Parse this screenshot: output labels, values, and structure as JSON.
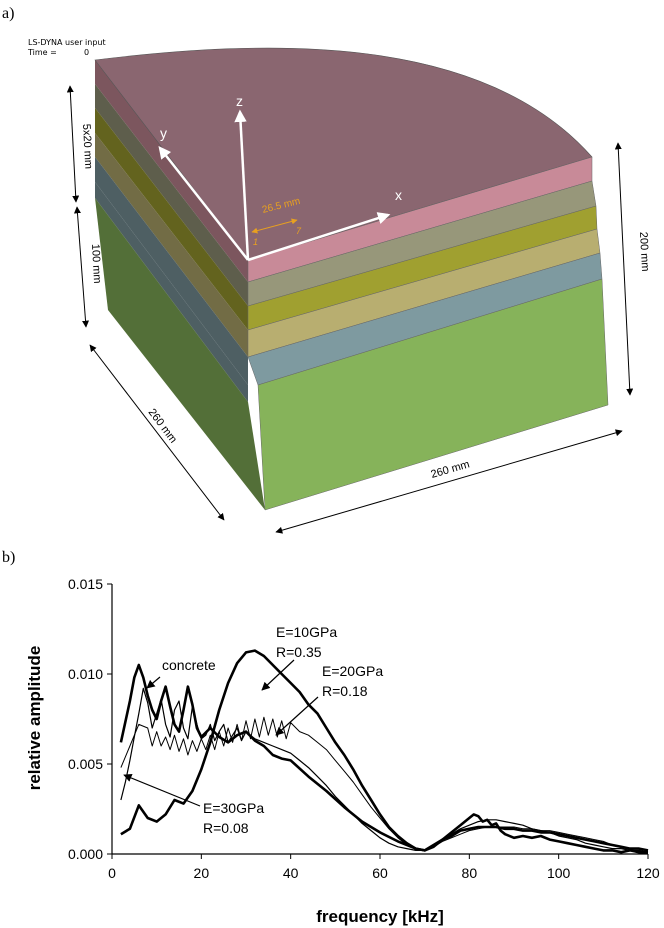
{
  "panel_a": {
    "label": "a)",
    "header_line1": "LS-DYNA user input",
    "header_line2_label": "Time =",
    "header_line2_value": "0",
    "dim_layers": "5x20 mm",
    "dim_base": "100 mm",
    "dim_height": "200 mm",
    "dim_depth": "260 mm",
    "dim_width": "260 mm",
    "axis_x": "x",
    "axis_y": "y",
    "axis_z": "z",
    "radius_label": "26.5 mm",
    "node1": "1",
    "node7": "7",
    "colors": {
      "top": "#8a6670",
      "layer1": "#c88a98",
      "layer2": "#97977a",
      "layer3": "#a0a030",
      "layer4": "#b8ae70",
      "layer5": "#7e9aa0",
      "base": "#86b35a",
      "radius_annot": "#e8a020"
    }
  },
  "panel_b": {
    "label": "b)"
  },
  "chart_data": {
    "type": "line",
    "xlabel": "frequency [kHz]",
    "ylabel": "relative amplitude",
    "xlim": [
      0,
      120
    ],
    "ylim": [
      0,
      0.015
    ],
    "xticks": [
      "0",
      "20",
      "40",
      "60",
      "80",
      "100",
      "120"
    ],
    "yticks": [
      "0.000",
      "0.005",
      "0.010",
      "0.015"
    ],
    "annotations": [
      {
        "text": "concrete",
        "lines": [
          "concrete"
        ]
      },
      {
        "text": "E=10GPa R=0.35",
        "lines": [
          "E=10GPa",
          "R=0.35"
        ]
      },
      {
        "text": "E=20GPa R=0.18",
        "lines": [
          "E=20GPa",
          "R=0.18"
        ]
      },
      {
        "text": "E=30GPa R=0.08",
        "lines": [
          "E=30GPa",
          "R=0.08"
        ]
      }
    ],
    "series": [
      {
        "name": "concrete",
        "x": [
          2,
          4,
          5,
          6,
          7,
          8,
          9,
          10,
          11,
          12,
          13,
          14,
          15,
          16,
          17,
          18,
          19,
          20,
          22,
          24,
          26,
          28,
          30,
          32,
          34,
          36,
          38,
          40,
          44,
          48,
          52,
          56,
          60,
          64,
          68,
          70,
          72,
          74,
          76,
          78,
          80,
          81,
          82,
          83,
          84,
          85,
          86,
          87,
          88,
          90,
          92,
          94,
          96,
          98,
          100,
          102,
          104,
          106,
          108,
          110,
          112,
          114,
          116,
          118,
          120
        ],
        "y": [
          0.0062,
          0.0085,
          0.0098,
          0.0105,
          0.0098,
          0.0088,
          0.008,
          0.0075,
          0.0085,
          0.0093,
          0.0082,
          0.0072,
          0.0068,
          0.008,
          0.0093,
          0.0083,
          0.007,
          0.0065,
          0.007,
          0.0065,
          0.0062,
          0.0066,
          0.0068,
          0.0063,
          0.006,
          0.0055,
          0.0053,
          0.0052,
          0.0043,
          0.0035,
          0.0026,
          0.0018,
          0.0012,
          0.0007,
          0.0003,
          0.0002,
          0.0004,
          0.0008,
          0.0012,
          0.0016,
          0.002,
          0.0022,
          0.0021,
          0.0018,
          0.0019,
          0.0016,
          0.0017,
          0.0013,
          0.0011,
          0.0009,
          0.001,
          0.0009,
          0.001,
          0.0008,
          0.0007,
          0.0006,
          0.0005,
          0.0004,
          0.0003,
          0.0002,
          0.0002,
          0.0001,
          0.0002,
          0.0001,
          0.0001
        ]
      },
      {
        "name": "E=10GPa R=0.35",
        "x": [
          2,
          4,
          6,
          8,
          10,
          12,
          14,
          16,
          18,
          20,
          22,
          24,
          26,
          28,
          30,
          32,
          34,
          36,
          38,
          40,
          42,
          44,
          46,
          48,
          50,
          52,
          54,
          56,
          58,
          60,
          62,
          64,
          66,
          68,
          70,
          72,
          74,
          76,
          78,
          80,
          82,
          84,
          86,
          88,
          90,
          92,
          94,
          96,
          98,
          100,
          102,
          104,
          106,
          108,
          110,
          112,
          114,
          116,
          118,
          120
        ],
        "y": [
          0.0011,
          0.0014,
          0.0027,
          0.002,
          0.0018,
          0.0022,
          0.003,
          0.0028,
          0.0035,
          0.0047,
          0.0062,
          0.008,
          0.0095,
          0.0106,
          0.0112,
          0.0113,
          0.011,
          0.0105,
          0.01,
          0.0095,
          0.009,
          0.0083,
          0.0078,
          0.007,
          0.0062,
          0.0055,
          0.0047,
          0.0038,
          0.003,
          0.0022,
          0.0015,
          0.001,
          0.0006,
          0.0003,
          0.0002,
          0.0005,
          0.0008,
          0.001,
          0.0013,
          0.0014,
          0.0015,
          0.0015,
          0.0015,
          0.0014,
          0.0014,
          0.0013,
          0.0013,
          0.0012,
          0.0012,
          0.0011,
          0.001,
          0.0009,
          0.0008,
          0.0007,
          0.0006,
          0.0005,
          0.0004,
          0.0003,
          0.0003,
          0.0002
        ]
      },
      {
        "name": "E=20GPa R=0.18",
        "x": [
          2,
          4,
          6,
          8,
          9,
          10,
          11,
          12,
          13,
          14,
          15,
          16,
          17,
          18,
          19,
          20,
          21,
          22,
          23,
          24,
          25,
          26,
          27,
          28,
          29,
          30,
          31,
          32,
          33,
          34,
          35,
          36,
          37,
          38,
          39,
          40,
          42,
          44,
          46,
          48,
          50,
          52,
          54,
          56,
          58,
          60,
          62,
          64,
          66,
          68,
          70,
          72,
          74,
          76,
          78,
          80,
          82,
          84,
          86,
          88,
          90,
          92,
          94,
          96,
          98,
          100,
          102,
          104,
          106,
          108,
          110,
          112,
          114,
          116,
          118,
          120
        ],
        "y": [
          0.0048,
          0.006,
          0.0072,
          0.007,
          0.006,
          0.0068,
          0.006,
          0.0065,
          0.0058,
          0.0066,
          0.0057,
          0.0064,
          0.0055,
          0.0063,
          0.0057,
          0.0064,
          0.0058,
          0.0066,
          0.0058,
          0.0068,
          0.006,
          0.007,
          0.0062,
          0.0072,
          0.0063,
          0.0074,
          0.0064,
          0.0075,
          0.0065,
          0.0076,
          0.0066,
          0.0075,
          0.0065,
          0.0074,
          0.0064,
          0.0073,
          0.0068,
          0.0066,
          0.0062,
          0.0058,
          0.0052,
          0.0046,
          0.004,
          0.0033,
          0.0026,
          0.002,
          0.0014,
          0.0009,
          0.0005,
          0.0003,
          0.0002,
          0.0004,
          0.0007,
          0.0009,
          0.0011,
          0.0013,
          0.0014,
          0.0015,
          0.0015,
          0.0015,
          0.0015,
          0.0014,
          0.0014,
          0.0013,
          0.0013,
          0.0012,
          0.0011,
          0.001,
          0.0009,
          0.0008,
          0.0007,
          0.0005,
          0.0004,
          0.0003,
          0.0003,
          0.0002
        ]
      },
      {
        "name": "E=30GPa R=0.08",
        "x": [
          2,
          3,
          4,
          5,
          6,
          7,
          8,
          9,
          10,
          11,
          12,
          13,
          14,
          15,
          16,
          17,
          18,
          19,
          20,
          21,
          22,
          23,
          24,
          25,
          26,
          27,
          28,
          29,
          30,
          32,
          34,
          36,
          38,
          40,
          42,
          44,
          46,
          48,
          50,
          52,
          54,
          56,
          58,
          60,
          62,
          64,
          66,
          68,
          70,
          72,
          74,
          76,
          78,
          80,
          82,
          84,
          86,
          88,
          90,
          92,
          94,
          96,
          98,
          100,
          102,
          104,
          106,
          108,
          110,
          112,
          114,
          116,
          118,
          120
        ],
        "y": [
          0.003,
          0.004,
          0.0052,
          0.0065,
          0.0078,
          0.0092,
          0.0084,
          0.007,
          0.0078,
          0.0086,
          0.0072,
          0.0065,
          0.008,
          0.0085,
          0.007,
          0.0064,
          0.0082,
          0.0072,
          0.0064,
          0.0066,
          0.0072,
          0.0063,
          0.0068,
          0.0072,
          0.0062,
          0.0066,
          0.007,
          0.0063,
          0.0068,
          0.0064,
          0.0062,
          0.006,
          0.0058,
          0.0056,
          0.0052,
          0.0048,
          0.0043,
          0.0038,
          0.0032,
          0.0027,
          0.0022,
          0.0017,
          0.0013,
          0.0009,
          0.0006,
          0.0004,
          0.0003,
          0.0002,
          0.0002,
          0.0005,
          0.0008,
          0.0011,
          0.0014,
          0.0016,
          0.0018,
          0.0019,
          0.0019,
          0.0018,
          0.0017,
          0.0016,
          0.0014,
          0.0013,
          0.0012,
          0.001,
          0.0009,
          0.0008,
          0.0006,
          0.0005,
          0.0004,
          0.0003,
          0.0003,
          0.0002,
          0.0002,
          0.0001
        ]
      }
    ]
  }
}
